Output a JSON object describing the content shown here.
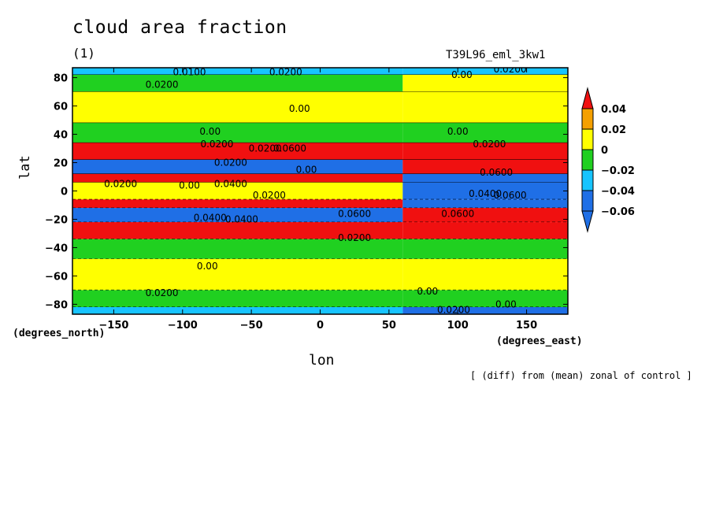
{
  "title": "cloud area fraction",
  "subtitle": "(1)",
  "run_name": "T39L96_eml_3kw1",
  "footnote": "[ (diff) from (mean) zonal of control ]",
  "chart_data": {
    "type": "heatmap",
    "variable": "cloud area fraction",
    "xlabel": "lon",
    "ylabel": "lat",
    "x_unit_label": "(degrees_east)",
    "y_unit_label": "(degrees_north)",
    "xlim": [
      -180,
      180
    ],
    "ylim": [
      -87,
      87
    ],
    "x_ticks": [
      -150,
      -100,
      -50,
      0,
      50,
      100,
      150
    ],
    "y_ticks": [
      -80,
      -60,
      -40,
      -20,
      0,
      20,
      40,
      60,
      80
    ],
    "colorbar": {
      "levels": [
        -0.06,
        -0.04,
        -0.02,
        0,
        0.02,
        0.04
      ],
      "level_labels": [
        "−0.06",
        "−0.04",
        "−0.02",
        "0",
        "0.02",
        "0.04"
      ],
      "colors": [
        "#1f6fe6",
        "#17c4ff",
        "#20d020",
        "#ffff00",
        "#f5a000",
        "#f01010"
      ]
    },
    "bands": [
      {
        "lat_from": 87,
        "lat_to": 82,
        "lon_east_of_60": "cyan",
        "lon_west_of_60": "cyan"
      },
      {
        "lat_from": 82,
        "lat_to": 70,
        "lon_east_of_60": "yellow",
        "lon_west_of_60": "green"
      },
      {
        "lat_from": 70,
        "lat_to": 48,
        "lon_east_of_60": "yellow",
        "lon_west_of_60": "yellow"
      },
      {
        "lat_from": 48,
        "lat_to": 34,
        "lon_east_of_60": "green",
        "lon_west_of_60": "green"
      },
      {
        "lat_from": 34,
        "lat_to": 22,
        "lon_east_of_60": "red",
        "lon_west_of_60": "red"
      },
      {
        "lat_from": 22,
        "lat_to": 12,
        "lon_east_of_60": "red",
        "lon_west_of_60": "blue"
      },
      {
        "lat_from": 12,
        "lat_to": 6,
        "lon_east_of_60": "blue",
        "lon_west_of_60": "red"
      },
      {
        "lat_from": 6,
        "lat_to": -6,
        "lon_east_of_60": "blue",
        "lon_west_of_60": "yellow"
      },
      {
        "lat_from": -6,
        "lat_to": -12,
        "lon_east_of_60": "blue",
        "lon_west_of_60": "red"
      },
      {
        "lat_from": -12,
        "lat_to": -22,
        "lon_east_of_60": "red",
        "lon_west_of_60": "blue"
      },
      {
        "lat_from": -22,
        "lat_to": -34,
        "lon_east_of_60": "red",
        "lon_west_of_60": "red"
      },
      {
        "lat_from": -34,
        "lat_to": -48,
        "lon_east_of_60": "green",
        "lon_west_of_60": "green"
      },
      {
        "lat_from": -48,
        "lat_to": -70,
        "lon_east_of_60": "yellow",
        "lon_west_of_60": "yellow"
      },
      {
        "lat_from": -70,
        "lat_to": -82,
        "lon_east_of_60": "green",
        "lon_west_of_60": "green"
      },
      {
        "lat_from": -82,
        "lat_to": -87,
        "lon_east_of_60": "blue",
        "lon_west_of_60": "cyan"
      }
    ],
    "contour_labels": [
      {
        "text": "0.0100",
        "lon": -95,
        "lat": 84
      },
      {
        "text": "0.0200",
        "lon": -115,
        "lat": 75
      },
      {
        "text": "0.0200",
        "lon": -25,
        "lat": 84
      },
      {
        "text": "0.00",
        "lon": 103,
        "lat": 82
      },
      {
        "text": "0.0200",
        "lon": 138,
        "lat": 86
      },
      {
        "text": "0.00",
        "lon": -15,
        "lat": 58
      },
      {
        "text": "0.00",
        "lon": -80,
        "lat": 42
      },
      {
        "text": "0.0200",
        "lon": -75,
        "lat": 33
      },
      {
        "text": "0.0200",
        "lon": -40,
        "lat": 30
      },
      {
        "text": "0.0600",
        "lon": -22,
        "lat": 30
      },
      {
        "text": "0.00",
        "lon": 100,
        "lat": 42
      },
      {
        "text": "0.0200",
        "lon": 123,
        "lat": 33
      },
      {
        "text": "0.0200",
        "lon": -65,
        "lat": 20
      },
      {
        "text": "0.00",
        "lon": -10,
        "lat": 15
      },
      {
        "text": "0.0600",
        "lon": 128,
        "lat": 13
      },
      {
        "text": "0.0200",
        "lon": -145,
        "lat": 5
      },
      {
        "text": "0.00",
        "lon": -95,
        "lat": 4
      },
      {
        "text": "0.0400",
        "lon": -65,
        "lat": 5
      },
      {
        "text": "0.0200",
        "lon": -37,
        "lat": -3
      },
      {
        "text": "0.0400",
        "lon": 120,
        "lat": -2
      },
      {
        "text": "0.0600",
        "lon": 138,
        "lat": -3
      },
      {
        "text": "0.0400",
        "lon": -80,
        "lat": -19
      },
      {
        "text": "0.0400",
        "lon": -57,
        "lat": -20
      },
      {
        "text": "0.0600",
        "lon": 25,
        "lat": -16
      },
      {
        "text": "0.0600",
        "lon": 100,
        "lat": -16
      },
      {
        "text": "0.0200",
        "lon": 25,
        "lat": -33
      },
      {
        "text": "0.00",
        "lon": -82,
        "lat": -53
      },
      {
        "text": "0.0200",
        "lon": -115,
        "lat": -72
      },
      {
        "text": "0.00",
        "lon": 78,
        "lat": -71
      },
      {
        "text": "0.00",
        "lon": 135,
        "lat": -80
      },
      {
        "text": "0.0200",
        "lon": 97,
        "lat": -84
      }
    ]
  }
}
